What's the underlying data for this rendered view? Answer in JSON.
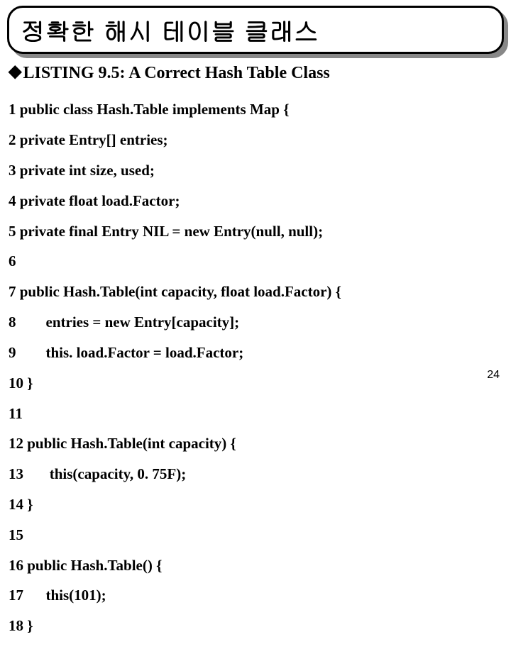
{
  "title": "정확한 해시 테이블 클래스",
  "subtitle_prefix": "LISTING 9.5:",
  "subtitle_rest": "  A Correct Hash Table Class",
  "bullet_char": "◆",
  "code_lines": [
    "1 public class Hash.Table implements Map {",
    "2 private Entry[] entries;",
    "3 private int size, used;",
    "4 private float load.Factor;",
    "5 private final Entry NIL = new Entry(null, null);",
    "6",
    "7 public Hash.Table(int capacity, float load.Factor) {",
    "8        entries = new Entry[capacity];",
    "9        this. load.Factor = load.Factor;",
    "10 }",
    "11",
    "12 public Hash.Table(int capacity) {",
    "13       this(capacity, 0. 75F);",
    "14 }",
    "15",
    "16 public Hash.Table() {",
    "17      this(101);",
    "18 }"
  ],
  "page_number": "24",
  "colors": {
    "background": "#ffffff",
    "border": "#000000",
    "shadow": "#888888",
    "text": "#000000"
  }
}
